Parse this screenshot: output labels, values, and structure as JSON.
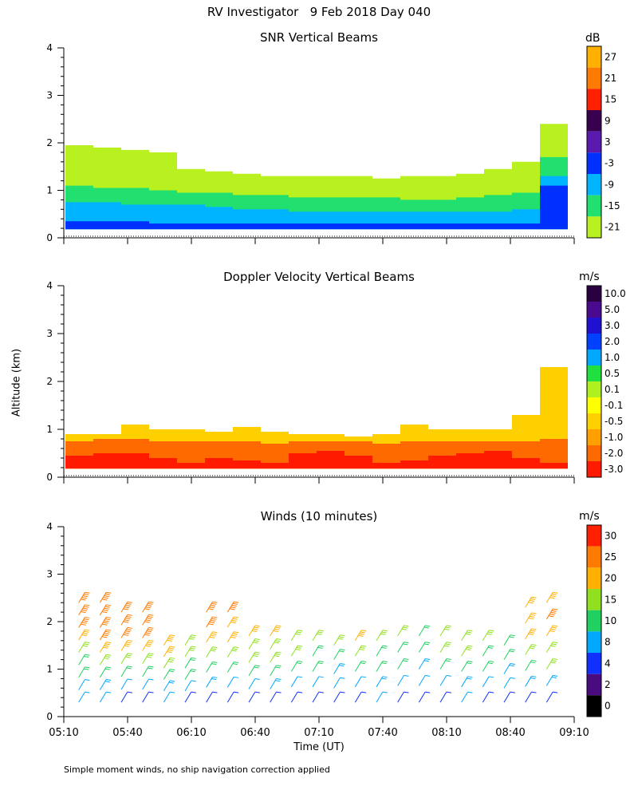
{
  "header": {
    "title": "RV Investigator   9 Feb 2018 Day 040"
  },
  "axes": {
    "ylabel": "Altitude (km)",
    "xlabel": "Time (UT)",
    "yticks": [
      "0",
      "1",
      "2",
      "3",
      "4"
    ],
    "xticks": [
      "05:10",
      "05:40",
      "06:10",
      "06:40",
      "07:10",
      "07:40",
      "08:10",
      "08:40",
      "09:10"
    ]
  },
  "footnote": "Simple moment winds, no ship navigation correction applied",
  "chart_data": [
    {
      "type": "heatmap",
      "title": "SNR Vertical Beams",
      "unit": "dB",
      "xlim": [
        "05:10",
        "09:10"
      ],
      "ylim": [
        0,
        4
      ],
      "colorbar": {
        "labels": [
          "27",
          "21",
          "15",
          "9",
          "3",
          "-3",
          "-9",
          "-15",
          "-21"
        ],
        "colors": [
          "#ffb000",
          "#ff7a00",
          "#ff2000",
          "#3a0050",
          "#5a1ab0",
          "#0030ff",
          "#00b4ff",
          "#22e070",
          "#b8f020"
        ]
      },
      "layers": [
        {
          "value": -21,
          "top_km": [
            1.95,
            1.9,
            1.85,
            1.8,
            1.45,
            1.4,
            1.35,
            1.3,
            1.3,
            1.3,
            1.3,
            1.25,
            1.3,
            1.3,
            1.35,
            1.45,
            1.6,
            2.4
          ]
        },
        {
          "value": -15,
          "top_km": [
            1.1,
            1.05,
            1.05,
            1.0,
            0.95,
            0.95,
            0.9,
            0.9,
            0.85,
            0.85,
            0.85,
            0.85,
            0.8,
            0.8,
            0.85,
            0.9,
            0.95,
            1.7
          ]
        },
        {
          "value": -9,
          "top_km": [
            0.75,
            0.75,
            0.7,
            0.7,
            0.7,
            0.65,
            0.6,
            0.6,
            0.55,
            0.55,
            0.55,
            0.55,
            0.55,
            0.55,
            0.55,
            0.55,
            0.6,
            1.3
          ]
        },
        {
          "value": -3,
          "top_km": [
            0.35,
            0.35,
            0.35,
            0.3,
            0.3,
            0.3,
            0.3,
            0.3,
            0.3,
            0.3,
            0.3,
            0.3,
            0.3,
            0.3,
            0.3,
            0.3,
            0.3,
            1.1
          ]
        }
      ]
    },
    {
      "type": "heatmap",
      "title": "Doppler Velocity Vertical Beams",
      "unit": "m/s",
      "xlim": [
        "05:10",
        "09:10"
      ],
      "ylim": [
        0,
        4
      ],
      "colorbar": {
        "labels": [
          "10.0",
          "5.0",
          "3.0",
          "2.0",
          "1.0",
          "0.5",
          "0.1",
          "-0.1",
          "-0.5",
          "-1.0",
          "-2.0",
          "-3.0"
        ],
        "colors": [
          "#2a0040",
          "#4a0a90",
          "#2010d0",
          "#0040ff",
          "#00a8ff",
          "#20e040",
          "#b0f020",
          "#ffff00",
          "#ffd000",
          "#ffa000",
          "#ff6a00",
          "#ff1a00"
        ]
      },
      "layers": [
        {
          "value": -0.5,
          "top_km": [
            0.9,
            0.9,
            1.1,
            1.0,
            1.0,
            0.95,
            1.05,
            0.95,
            0.9,
            0.9,
            0.85,
            0.9,
            1.1,
            1.0,
            1.0,
            1.0,
            1.3,
            2.3
          ]
        },
        {
          "value": -2.0,
          "top_km": [
            0.75,
            0.8,
            0.8,
            0.75,
            0.75,
            0.75,
            0.75,
            0.7,
            0.75,
            0.75,
            0.75,
            0.7,
            0.75,
            0.75,
            0.75,
            0.75,
            0.75,
            0.8
          ]
        },
        {
          "value": -3.0,
          "top_km": [
            0.45,
            0.5,
            0.5,
            0.4,
            0.3,
            0.4,
            0.35,
            0.3,
            0.5,
            0.55,
            0.45,
            0.3,
            0.35,
            0.45,
            0.5,
            0.55,
            0.4,
            0.3
          ]
        }
      ]
    },
    {
      "type": "scatter",
      "title": "Winds (10 minutes)",
      "unit": "m/s",
      "xlim": [
        "05:10",
        "09:10"
      ],
      "ylim": [
        0,
        4
      ],
      "colorbar": {
        "labels": [
          "30",
          "25",
          "20",
          "15",
          "10",
          "8",
          "4",
          "2",
          "0"
        ],
        "colors": [
          "#ff2000",
          "#ff7a00",
          "#ffb000",
          "#90e020",
          "#20d060",
          "#00a8ff",
          "#1030ff",
          "#4a0a80",
          "#000000"
        ]
      },
      "profiles": [
        {
          "time": "05:20",
          "top_km": 2.4,
          "speed_ms": [
            6,
            6,
            9,
            12,
            17,
            20,
            24,
            27,
            26
          ]
        },
        {
          "time": "05:30",
          "top_km": 2.4,
          "speed_ms": [
            6,
            8,
            11,
            15,
            20,
            24,
            26,
            27,
            26
          ]
        },
        {
          "time": "05:40",
          "top_km": 2.2,
          "speed_ms": [
            5,
            7,
            10,
            14,
            19,
            23,
            26,
            26
          ]
        },
        {
          "time": "05:50",
          "top_km": 2.2,
          "speed_ms": [
            5,
            7,
            12,
            16,
            21,
            25,
            26,
            27
          ]
        },
        {
          "time": "06:00",
          "top_km": 1.5,
          "speed_ms": [
            6,
            8,
            11,
            14,
            18,
            20
          ]
        },
        {
          "time": "06:10",
          "top_km": 1.5,
          "speed_ms": [
            4,
            6,
            9,
            12,
            15,
            16
          ]
        },
        {
          "time": "06:20",
          "top_km": 2.2,
          "speed_ms": [
            5,
            8,
            11,
            15,
            19,
            23,
            26
          ]
        },
        {
          "time": "06:30",
          "top_km": 2.2,
          "speed_ms": [
            4,
            7,
            11,
            15,
            19,
            22,
            25
          ]
        },
        {
          "time": "06:40",
          "top_km": 1.7,
          "speed_ms": [
            4,
            7,
            10,
            14,
            17,
            18
          ]
        },
        {
          "time": "06:50",
          "top_km": 1.7,
          "speed_ms": [
            5,
            8,
            12,
            15,
            17,
            18
          ]
        },
        {
          "time": "07:00",
          "top_km": 1.6,
          "speed_ms": [
            5,
            7,
            11,
            14,
            17
          ]
        },
        {
          "time": "07:10",
          "top_km": 1.6,
          "speed_ms": [
            4,
            6,
            9,
            12,
            15
          ]
        },
        {
          "time": "07:20",
          "top_km": 1.5,
          "speed_ms": [
            4,
            6,
            8,
            11,
            14
          ]
        },
        {
          "time": "07:30",
          "top_km": 1.6,
          "speed_ms": [
            5,
            7,
            10,
            14,
            18
          ]
        },
        {
          "time": "07:40",
          "top_km": 1.6,
          "speed_ms": [
            6,
            8,
            10,
            12,
            14
          ]
        },
        {
          "time": "07:50",
          "top_km": 1.7,
          "speed_ms": [
            5,
            7,
            9,
            12,
            14
          ]
        },
        {
          "time": "08:00",
          "top_km": 1.7,
          "speed_ms": [
            4,
            6,
            8,
            10,
            11
          ]
        },
        {
          "time": "08:10",
          "top_km": 1.7,
          "speed_ms": [
            5,
            7,
            10,
            13,
            15
          ]
        },
        {
          "time": "08:20",
          "top_km": 1.6,
          "speed_ms": [
            6,
            8,
            11,
            14,
            16
          ]
        },
        {
          "time": "08:30",
          "top_km": 1.6,
          "speed_ms": [
            5,
            7,
            9,
            11,
            13
          ]
        },
        {
          "time": "08:40",
          "top_km": 1.5,
          "speed_ms": [
            5,
            6,
            8,
            9,
            10
          ]
        },
        {
          "time": "08:50",
          "top_km": 2.3,
          "speed_ms": [
            5,
            8,
            12,
            16,
            19,
            21,
            20
          ]
        },
        {
          "time": "09:00",
          "top_km": 2.4,
          "speed_ms": [
            5,
            8,
            13,
            17,
            21,
            23,
            22
          ]
        }
      ]
    }
  ]
}
